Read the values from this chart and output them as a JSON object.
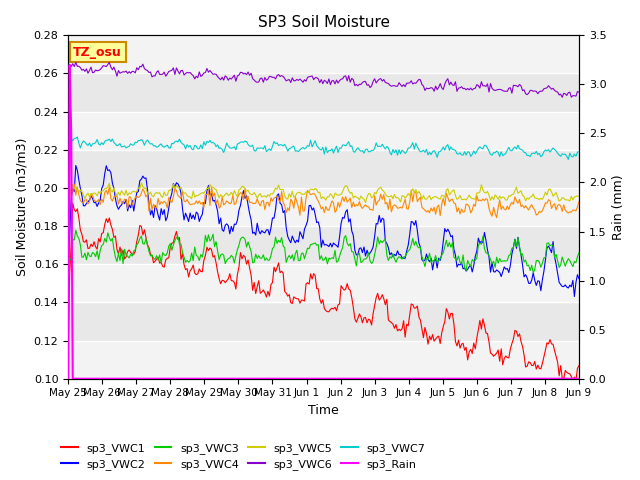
{
  "title": "SP3 Soil Moisture",
  "ylabel_left": "Soil Moisture (m3/m3)",
  "ylabel_right": "Rain (mm)",
  "xlabel": "Time",
  "ylim_left": [
    0.1,
    0.28
  ],
  "ylim_right": [
    0.0,
    3.5
  ],
  "tz_label": "TZ_osu",
  "background_color": "#ffffff",
  "plot_bg_color": "#e8e8e8",
  "series": [
    {
      "key": "sp3_VWC1",
      "color": "#ff0000",
      "label": "sp3_VWC1"
    },
    {
      "key": "sp3_VWC2",
      "color": "#0000ff",
      "label": "sp3_VWC2"
    },
    {
      "key": "sp3_VWC3",
      "color": "#00cc00",
      "label": "sp3_VWC3"
    },
    {
      "key": "sp3_VWC4",
      "color": "#ff8800",
      "label": "sp3_VWC4"
    },
    {
      "key": "sp3_VWC5",
      "color": "#cccc00",
      "label": "sp3_VWC5"
    },
    {
      "key": "sp3_VWC6",
      "color": "#8800cc",
      "label": "sp3_VWC6"
    },
    {
      "key": "sp3_VWC7",
      "color": "#00cccc",
      "label": "sp3_VWC7"
    },
    {
      "key": "sp3_Rain",
      "color": "#ff00ff",
      "label": "sp3_Rain"
    }
  ],
  "x_tick_labels": [
    "May 25",
    "May 26",
    "May 27",
    "May 28",
    "May 29",
    "May 30",
    "May 31",
    "Jun 1",
    "Jun 2",
    "Jun 3",
    "Jun 4",
    "Jun 5",
    "Jun 6",
    "Jun 7",
    "Jun 8",
    "Jun 9"
  ],
  "x_tick_positions": [
    0,
    1,
    2,
    3,
    4,
    5,
    6,
    7,
    8,
    9,
    10,
    11,
    12,
    13,
    14,
    15
  ],
  "yticks_left": [
    0.1,
    0.12,
    0.14,
    0.16,
    0.18,
    0.2,
    0.22,
    0.24,
    0.26,
    0.28
  ],
  "yticks_right": [
    0.0,
    0.5,
    1.0,
    1.5,
    2.0,
    2.5,
    3.0,
    3.5
  ],
  "n_points": 336,
  "days": 15
}
